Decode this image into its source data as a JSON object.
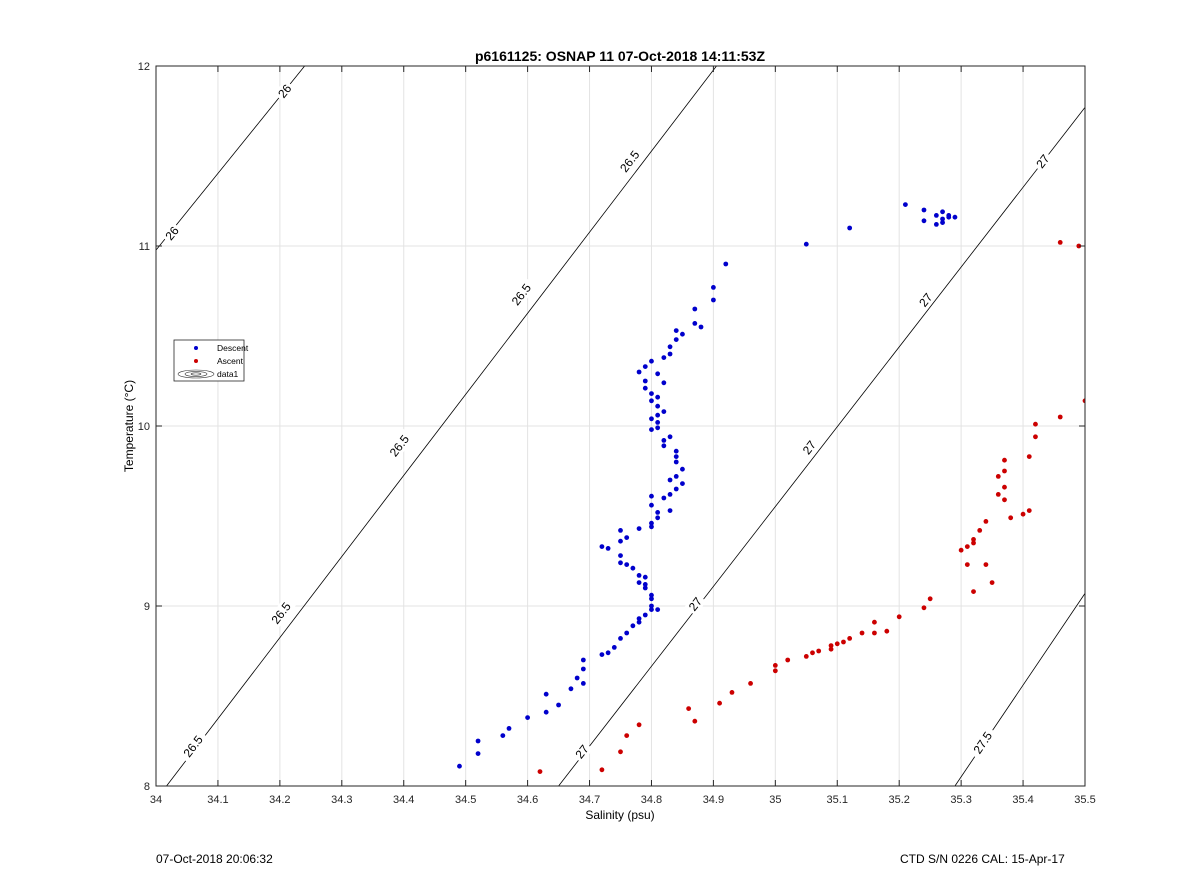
{
  "chart_data": {
    "type": "scatter",
    "title": "p6161125: OSNAP 11 07-Oct-2018 14:11:53Z",
    "xlabel": "Salinity (psu)",
    "ylabel": "Temperature (°C)",
    "xlim": [
      34,
      35.5
    ],
    "ylim": [
      8,
      12
    ],
    "xticks": [
      34,
      34.1,
      34.2,
      34.3,
      34.4,
      34.5,
      34.6,
      34.7,
      34.8,
      34.9,
      35,
      35.1,
      35.2,
      35.3,
      35.4,
      35.5
    ],
    "xtick_labels": [
      "34",
      "34.1",
      "34.2",
      "34.3",
      "34.4",
      "34.5",
      "34.6",
      "34.7",
      "34.8",
      "34.9",
      "35",
      "35.1",
      "35.2",
      "35.3",
      "35.4",
      "35.5"
    ],
    "yticks": [
      8,
      9,
      10,
      11,
      12
    ],
    "ytick_labels": [
      "8",
      "9",
      "10",
      "11",
      "12"
    ],
    "grid": true,
    "legend_position": "left",
    "legend": [
      "Descent",
      "Ascent",
      "data1"
    ],
    "contours": [
      {
        "label": "26",
        "points": [
          [
            34.0,
            10.977
          ],
          [
            34.24,
            12.0
          ]
        ],
        "label_positions": [
          [
            34.026,
            11.07
          ],
          [
            34.208,
            11.86
          ]
        ]
      },
      {
        "label": "26.5",
        "points": [
          [
            34.017,
            8.0
          ],
          [
            34.905,
            12.0
          ]
        ],
        "label_positions": [
          [
            34.06,
            8.22
          ],
          [
            34.202,
            8.96
          ],
          [
            34.393,
            9.89
          ],
          [
            34.59,
            10.73
          ],
          [
            34.765,
            11.47
          ]
        ]
      },
      {
        "label": "27",
        "points": [
          [
            34.65,
            8.0
          ],
          [
            35.5,
            11.77
          ]
        ],
        "label_positions": [
          [
            34.688,
            8.19
          ],
          [
            34.871,
            9.01
          ],
          [
            35.055,
            9.88
          ],
          [
            35.243,
            10.7
          ],
          [
            35.432,
            11.47
          ]
        ]
      },
      {
        "label": "27.5",
        "points": [
          [
            35.29,
            8.0
          ],
          [
            35.5,
            9.07
          ]
        ],
        "label_positions": [
          [
            35.335,
            8.24
          ]
        ]
      }
    ],
    "series": [
      {
        "name": "Descent",
        "color": "#0000cc",
        "points": [
          [
            34.49,
            8.11
          ],
          [
            34.52,
            8.18
          ],
          [
            34.52,
            8.25
          ],
          [
            34.56,
            8.28
          ],
          [
            34.57,
            8.32
          ],
          [
            34.6,
            8.38
          ],
          [
            34.63,
            8.41
          ],
          [
            34.63,
            8.51
          ],
          [
            34.65,
            8.45
          ],
          [
            34.67,
            8.54
          ],
          [
            34.68,
            8.6
          ],
          [
            34.69,
            8.57
          ],
          [
            34.69,
            8.65
          ],
          [
            34.69,
            8.7
          ],
          [
            34.72,
            8.73
          ],
          [
            34.73,
            8.74
          ],
          [
            34.74,
            8.77
          ],
          [
            34.75,
            8.82
          ],
          [
            34.76,
            8.85
          ],
          [
            34.77,
            8.89
          ],
          [
            34.78,
            8.91
          ],
          [
            34.78,
            8.93
          ],
          [
            34.79,
            8.95
          ],
          [
            34.8,
            8.98
          ],
          [
            34.81,
            8.98
          ],
          [
            34.8,
            9.0
          ],
          [
            34.8,
            9.04
          ],
          [
            34.8,
            9.06
          ],
          [
            34.79,
            9.1
          ],
          [
            34.79,
            9.12
          ],
          [
            34.78,
            9.13
          ],
          [
            34.78,
            9.17
          ],
          [
            34.79,
            9.16
          ],
          [
            34.77,
            9.21
          ],
          [
            34.76,
            9.23
          ],
          [
            34.75,
            9.24
          ],
          [
            34.75,
            9.28
          ],
          [
            34.73,
            9.32
          ],
          [
            34.72,
            9.33
          ],
          [
            34.75,
            9.36
          ],
          [
            34.76,
            9.38
          ],
          [
            34.75,
            9.42
          ],
          [
            34.78,
            9.43
          ],
          [
            34.8,
            9.44
          ],
          [
            34.8,
            9.46
          ],
          [
            34.81,
            9.49
          ],
          [
            34.81,
            9.52
          ],
          [
            34.83,
            9.53
          ],
          [
            34.8,
            9.56
          ],
          [
            34.8,
            9.61
          ],
          [
            34.82,
            9.6
          ],
          [
            34.83,
            9.62
          ],
          [
            34.84,
            9.65
          ],
          [
            34.85,
            9.68
          ],
          [
            34.83,
            9.7
          ],
          [
            34.84,
            9.72
          ],
          [
            34.85,
            9.76
          ],
          [
            34.84,
            9.8
          ],
          [
            34.84,
            9.83
          ],
          [
            34.84,
            9.86
          ],
          [
            34.82,
            9.89
          ],
          [
            34.82,
            9.92
          ],
          [
            34.83,
            9.94
          ],
          [
            34.8,
            9.98
          ],
          [
            34.81,
            9.99
          ],
          [
            34.81,
            10.02
          ],
          [
            34.8,
            10.04
          ],
          [
            34.81,
            10.06
          ],
          [
            34.82,
            10.08
          ],
          [
            34.81,
            10.11
          ],
          [
            34.8,
            10.14
          ],
          [
            34.81,
            10.16
          ],
          [
            34.8,
            10.18
          ],
          [
            34.79,
            10.21
          ],
          [
            34.82,
            10.24
          ],
          [
            34.79,
            10.25
          ],
          [
            34.81,
            10.29
          ],
          [
            34.78,
            10.3
          ],
          [
            34.79,
            10.33
          ],
          [
            34.8,
            10.36
          ],
          [
            34.82,
            10.38
          ],
          [
            34.83,
            10.4
          ],
          [
            34.83,
            10.44
          ],
          [
            34.84,
            10.48
          ],
          [
            34.85,
            10.51
          ],
          [
            34.84,
            10.53
          ],
          [
            34.87,
            10.57
          ],
          [
            34.88,
            10.55
          ],
          [
            34.87,
            10.65
          ],
          [
            34.9,
            10.7
          ],
          [
            34.9,
            10.77
          ],
          [
            34.92,
            10.9
          ],
          [
            35.05,
            11.01
          ],
          [
            35.12,
            11.1
          ],
          [
            35.21,
            11.23
          ],
          [
            35.24,
            11.2
          ],
          [
            35.24,
            11.14
          ],
          [
            35.26,
            11.12
          ],
          [
            35.26,
            11.17
          ],
          [
            35.27,
            11.15
          ],
          [
            35.27,
            11.13
          ],
          [
            35.27,
            11.19
          ],
          [
            35.28,
            11.16
          ],
          [
            35.28,
            11.17
          ],
          [
            35.29,
            11.16
          ]
        ]
      },
      {
        "name": "Ascent",
        "color": "#cc0000",
        "points": [
          [
            34.62,
            8.08
          ],
          [
            34.72,
            8.09
          ],
          [
            34.75,
            8.19
          ],
          [
            34.76,
            8.28
          ],
          [
            34.78,
            8.34
          ],
          [
            34.86,
            8.43
          ],
          [
            34.87,
            8.36
          ],
          [
            34.91,
            8.46
          ],
          [
            34.93,
            8.52
          ],
          [
            34.96,
            8.57
          ],
          [
            35.0,
            8.64
          ],
          [
            35.0,
            8.67
          ],
          [
            35.02,
            8.7
          ],
          [
            35.05,
            8.72
          ],
          [
            35.06,
            8.74
          ],
          [
            35.07,
            8.75
          ],
          [
            35.09,
            8.76
          ],
          [
            35.09,
            8.78
          ],
          [
            35.1,
            8.79
          ],
          [
            35.11,
            8.8
          ],
          [
            35.12,
            8.82
          ],
          [
            35.14,
            8.85
          ],
          [
            35.16,
            8.85
          ],
          [
            35.16,
            8.91
          ],
          [
            35.18,
            8.86
          ],
          [
            35.2,
            8.94
          ],
          [
            35.24,
            8.99
          ],
          [
            35.25,
            9.04
          ],
          [
            35.3,
            9.31
          ],
          [
            35.31,
            9.33
          ],
          [
            35.31,
            9.23
          ],
          [
            35.32,
            9.08
          ],
          [
            35.32,
            9.35
          ],
          [
            35.32,
            9.37
          ],
          [
            35.33,
            9.42
          ],
          [
            35.34,
            9.47
          ],
          [
            35.34,
            9.23
          ],
          [
            35.35,
            9.13
          ],
          [
            35.36,
            9.62
          ],
          [
            35.36,
            9.72
          ],
          [
            35.37,
            9.66
          ],
          [
            35.37,
            9.75
          ],
          [
            35.37,
            9.59
          ],
          [
            35.37,
            9.81
          ],
          [
            35.38,
            9.49
          ],
          [
            35.4,
            9.51
          ],
          [
            35.41,
            9.53
          ],
          [
            35.41,
            9.83
          ],
          [
            35.42,
            9.94
          ],
          [
            35.42,
            10.01
          ],
          [
            35.46,
            10.05
          ],
          [
            35.46,
            11.02
          ],
          [
            35.49,
            11.0
          ],
          [
            35.5,
            10.14
          ]
        ]
      }
    ]
  },
  "footer": {
    "timestamp": "07-Oct-2018 20:06:32",
    "instrument": "CTD S/N 0226  CAL: 15-Apr-17"
  }
}
